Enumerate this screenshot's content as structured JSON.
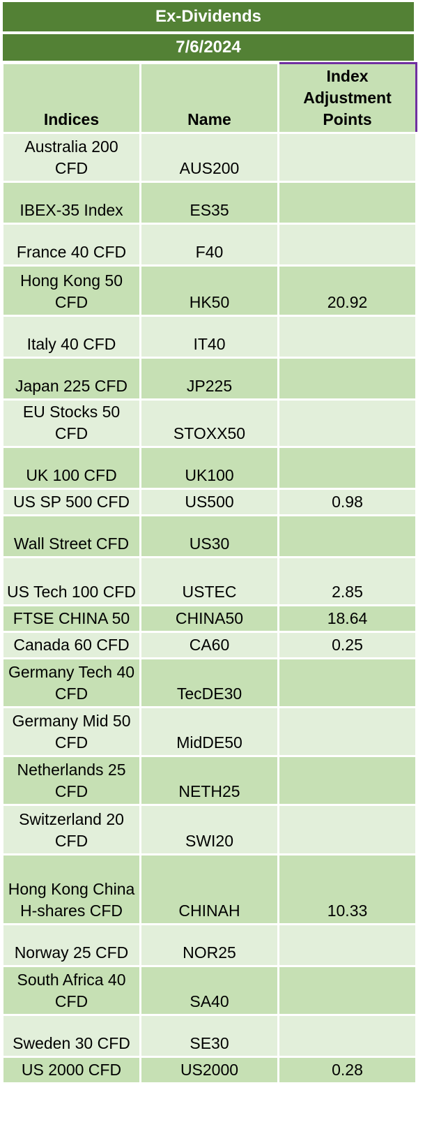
{
  "title": "Ex-Dividends",
  "date": "7/6/2024",
  "columns": {
    "indices": "Indices",
    "name": "Name",
    "adjustment": "Index Adjustment Points"
  },
  "rows": [
    {
      "index": "Australia 200 CFD",
      "name": "AUS200",
      "points": ""
    },
    {
      "index": "IBEX-35 Index",
      "name": "ES35",
      "points": ""
    },
    {
      "index": "France 40 CFD",
      "name": "F40",
      "points": ""
    },
    {
      "index": "Hong Kong 50 CFD",
      "name": "HK50",
      "points": "20.92"
    },
    {
      "index": "Italy 40 CFD",
      "name": "IT40",
      "points": ""
    },
    {
      "index": "Japan 225 CFD",
      "name": "JP225",
      "points": ""
    },
    {
      "index": "EU Stocks 50 CFD",
      "name": "STOXX50",
      "points": ""
    },
    {
      "index": "UK 100 CFD",
      "name": "UK100",
      "points": ""
    },
    {
      "index": "US SP 500 CFD",
      "name": "US500",
      "points": "0.98"
    },
    {
      "index": "Wall Street CFD",
      "name": "US30",
      "points": ""
    },
    {
      "index": "US Tech 100 CFD",
      "name": "USTEC",
      "points": "2.85"
    },
    {
      "index": "FTSE CHINA 50",
      "name": "CHINA50",
      "points": "18.64"
    },
    {
      "index": "Canada 60 CFD",
      "name": "CA60",
      "points": "0.25"
    },
    {
      "index": "Germany Tech 40 CFD",
      "name": "TecDE30",
      "points": ""
    },
    {
      "index": "Germany Mid 50 CFD",
      "name": "MidDE50",
      "points": ""
    },
    {
      "index": "Netherlands 25 CFD",
      "name": "NETH25",
      "points": ""
    },
    {
      "index": "Switzerland 20 CFD",
      "name": "SWI20",
      "points": ""
    },
    {
      "index": "Hong Kong China H-shares CFD",
      "name": "CHINAH",
      "points": "10.33"
    },
    {
      "index": "Norway 25 CFD",
      "name": "NOR25",
      "points": ""
    },
    {
      "index": "South Africa 40 CFD",
      "name": "SA40",
      "points": ""
    },
    {
      "index": "Sweden 30 CFD",
      "name": "SE30",
      "points": ""
    },
    {
      "index": "US 2000 CFD",
      "name": "US2000",
      "points": "0.28"
    }
  ]
}
